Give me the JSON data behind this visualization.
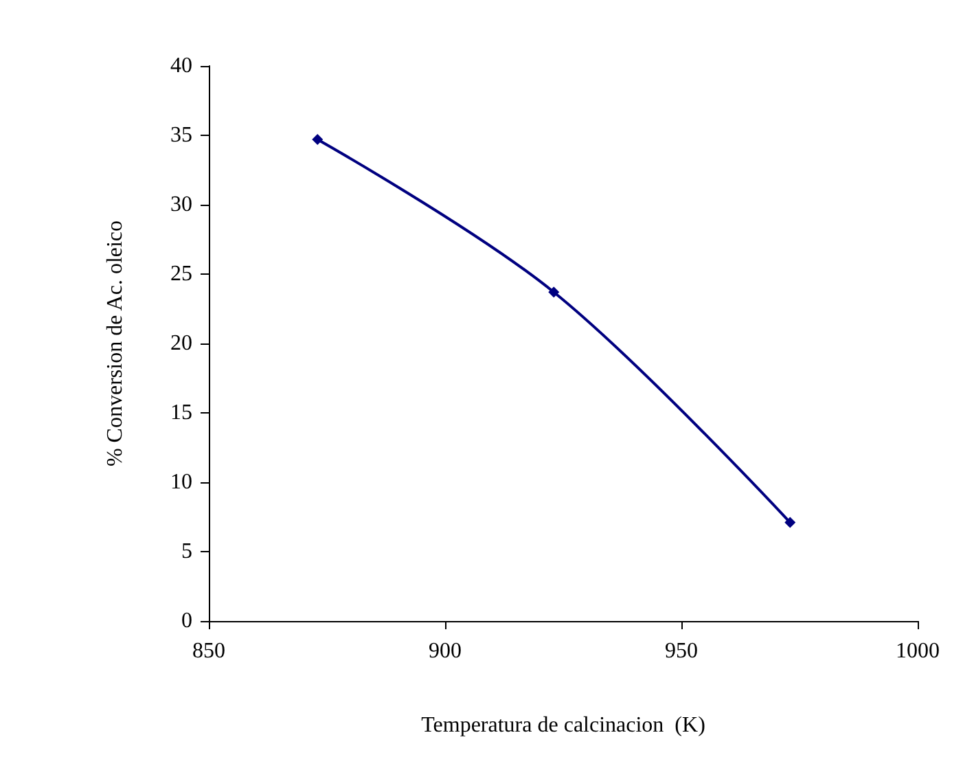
{
  "chart_data": {
    "type": "line",
    "xlabel": "Temperatura de calcinacion  (K)",
    "ylabel": "% Conversion de Ac. oleico",
    "x": [
      873,
      923,
      973
    ],
    "series": [
      {
        "color": "#000080",
        "values": [
          34.7,
          23.7,
          7.1
        ]
      }
    ],
    "xlim": [
      850,
      1000
    ],
    "xticks": [
      850,
      900,
      950,
      1000
    ],
    "ylim": [
      0,
      40
    ],
    "yticks": [
      0,
      5,
      10,
      15,
      20,
      25,
      30,
      35,
      40
    ],
    "grid": false,
    "marker": "diamond",
    "line_style": "solid"
  }
}
